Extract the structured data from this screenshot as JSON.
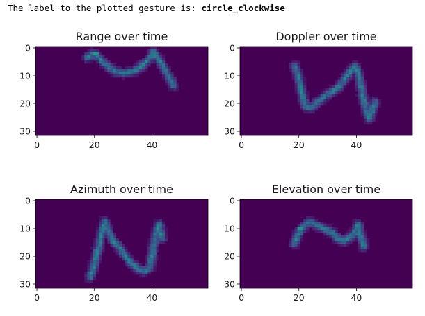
{
  "output": {
    "prefix": "The label to the plotted gesture is: ",
    "label": "circle_clockwise"
  },
  "colors": {
    "background": "#440154",
    "hot": "#fde725",
    "mid": "#21918c",
    "warm": "#5ec962"
  },
  "chart_data": [
    {
      "type": "heatmap",
      "title": "Range over time",
      "xlabel": "",
      "ylabel": "",
      "xlim": [
        0,
        60
      ],
      "ylim": [
        32,
        0
      ],
      "xticks": [
        0,
        20,
        40
      ],
      "yticks": [
        0,
        10,
        20,
        30
      ],
      "colormap": "viridis",
      "trace": [
        [
          18,
          4
        ],
        [
          20,
          2.5
        ],
        [
          22,
          4
        ],
        [
          25,
          7
        ],
        [
          28,
          9
        ],
        [
          31,
          9.5
        ],
        [
          34,
          9
        ],
        [
          37,
          7
        ],
        [
          40,
          4
        ],
        [
          41,
          2
        ],
        [
          43,
          5
        ],
        [
          46,
          10
        ],
        [
          48,
          14
        ]
      ],
      "hotspots": [
        [
          21,
          2.5,
          1.0
        ],
        [
          41,
          2,
          0.75
        ],
        [
          20,
          4,
          0.6
        ]
      ]
    },
    {
      "type": "heatmap",
      "title": "Doppler over time",
      "xlabel": "",
      "ylabel": "",
      "xlim": [
        0,
        60
      ],
      "ylim": [
        32,
        0
      ],
      "xticks": [
        0,
        20,
        40
      ],
      "yticks": [
        0,
        10,
        20,
        30
      ],
      "colormap": "viridis",
      "trace": [
        [
          19,
          7
        ],
        [
          20,
          10
        ],
        [
          21,
          14
        ],
        [
          22,
          19
        ],
        [
          23,
          22
        ],
        [
          25,
          22
        ],
        [
          28,
          19
        ],
        [
          31,
          17
        ],
        [
          34,
          15
        ],
        [
          37,
          11
        ],
        [
          39,
          8
        ],
        [
          40,
          7
        ],
        [
          41,
          9
        ],
        [
          42,
          14
        ],
        [
          43,
          19
        ],
        [
          44,
          23
        ],
        [
          45,
          26
        ],
        [
          47,
          20
        ]
      ],
      "hotspots": [
        [
          21,
          14,
          1.0
        ],
        [
          21,
          13,
          0.85
        ],
        [
          40,
          8,
          0.45
        ]
      ]
    },
    {
      "type": "heatmap",
      "title": "Azimuth over time",
      "xlabel": "",
      "ylabel": "",
      "xlim": [
        0,
        60
      ],
      "ylim": [
        32,
        0
      ],
      "xticks": [
        0,
        20,
        40
      ],
      "yticks": [
        0,
        10,
        20,
        30
      ],
      "colormap": "viridis",
      "trace": [
        [
          19,
          28
        ],
        [
          20,
          25
        ],
        [
          21,
          21
        ],
        [
          22,
          17
        ],
        [
          23,
          12
        ],
        [
          24,
          8
        ],
        [
          25,
          11
        ],
        [
          27,
          15
        ],
        [
          29,
          17
        ],
        [
          31,
          20
        ],
        [
          33,
          23
        ],
        [
          36,
          25
        ],
        [
          38,
          26
        ],
        [
          40,
          24
        ],
        [
          41,
          17
        ],
        [
          42,
          12
        ],
        [
          43,
          9
        ],
        [
          44,
          14
        ]
      ],
      "hotspots": [
        [
          21,
          21,
          1.0
        ],
        [
          21,
          19,
          0.85
        ],
        [
          29,
          17,
          0.55
        ],
        [
          37,
          25,
          0.5
        ]
      ]
    },
    {
      "type": "heatmap",
      "title": "Elevation over time",
      "xlabel": "",
      "ylabel": "",
      "xlim": [
        0,
        60
      ],
      "ylim": [
        32,
        0
      ],
      "xticks": [
        0,
        20,
        40
      ],
      "yticks": [
        0,
        10,
        20,
        30
      ],
      "colormap": "viridis",
      "trace": [
        [
          19,
          16
        ],
        [
          20,
          13
        ],
        [
          21,
          11
        ],
        [
          22,
          10
        ],
        [
          24,
          8
        ],
        [
          26,
          9
        ],
        [
          28,
          10
        ],
        [
          30,
          11
        ],
        [
          32,
          12
        ],
        [
          34,
          14
        ],
        [
          36,
          15
        ],
        [
          38,
          14
        ],
        [
          40,
          12
        ],
        [
          41,
          9
        ],
        [
          42,
          13
        ],
        [
          43,
          17
        ]
      ],
      "hotspots": [
        [
          21,
          10.5,
          1.0
        ],
        [
          21,
          12,
          0.8
        ],
        [
          36,
          14,
          0.5
        ],
        [
          41,
          13,
          0.45
        ]
      ]
    }
  ]
}
